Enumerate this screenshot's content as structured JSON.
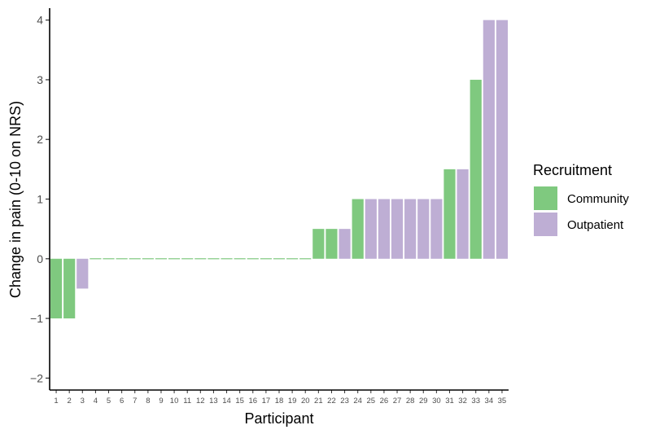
{
  "chart_data": {
    "type": "bar",
    "xlabel": "Participant",
    "ylabel": "Change in pain (0-10 on NRS)",
    "ylim": [
      -2.2,
      4.2
    ],
    "yticks": [
      -2,
      -1,
      0,
      1,
      2,
      3,
      4
    ],
    "ytick_labels": [
      "−2",
      "−1",
      "0",
      "1",
      "2",
      "3",
      "4"
    ],
    "grid": false,
    "legend": {
      "title": "Recruitment",
      "placement": "right",
      "entries": [
        {
          "name": "Community",
          "color": "#7fc97f"
        },
        {
          "name": "Outpatient",
          "color": "#beaed4"
        }
      ]
    },
    "categories": [
      "1",
      "2",
      "3",
      "4",
      "5",
      "6",
      "7",
      "8",
      "9",
      "10",
      "11",
      "12",
      "13",
      "14",
      "15",
      "16",
      "17",
      "18",
      "19",
      "20",
      "21",
      "22",
      "23",
      "24",
      "25",
      "26",
      "27",
      "28",
      "29",
      "30",
      "31",
      "32",
      "33",
      "34",
      "35"
    ],
    "values": [
      -1,
      -1,
      -0.5,
      0,
      0,
      0,
      0,
      0,
      0,
      0,
      0,
      0,
      0,
      0,
      0,
      0,
      0,
      0,
      0,
      0,
      0.5,
      0.5,
      0.5,
      1,
      1,
      1,
      1,
      1,
      1,
      1,
      1.5,
      1.5,
      3,
      4,
      4
    ],
    "groups": [
      "Community",
      "Community",
      "Outpatient",
      "Community",
      "Community",
      "Community",
      "Community",
      "Community",
      "Community",
      "Community",
      "Community",
      "Community",
      "Community",
      "Community",
      "Community",
      "Community",
      "Community",
      "Community",
      "Community",
      "Community",
      "Community",
      "Community",
      "Outpatient",
      "Community",
      "Outpatient",
      "Outpatient",
      "Outpatient",
      "Outpatient",
      "Outpatient",
      "Outpatient",
      "Community",
      "Outpatient",
      "Community",
      "Outpatient",
      "Outpatient"
    ]
  }
}
